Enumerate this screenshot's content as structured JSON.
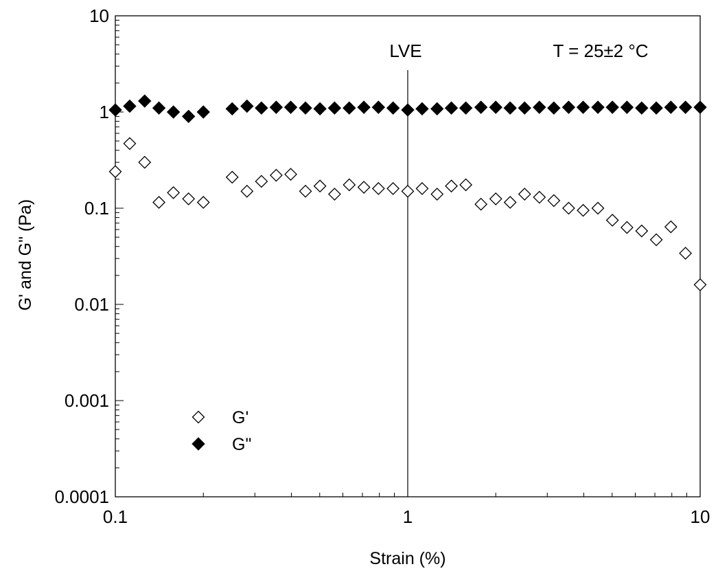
{
  "chart_data": {
    "type": "scatter",
    "xlabel": "Strain (%)",
    "ylabel": "G' and G\" (Pa)",
    "xscale": "log",
    "yscale": "log",
    "xlim": [
      0.1,
      10
    ],
    "ylim": [
      0.0001,
      10
    ],
    "x_tick_labels": [
      "0.1",
      "1",
      "10"
    ],
    "y_tick_labels": [
      "0.0001",
      "0.001",
      "0.01",
      "0.1",
      "1",
      "10"
    ],
    "grid": false,
    "legend_position": "lower-left",
    "annotations": {
      "lve_label": "LVE",
      "lve_strain": 1,
      "temperature_label": "T = 25±2 °C"
    },
    "series": [
      {
        "name": "G'",
        "marker": "open-diamond",
        "color": "#000000",
        "x": [
          0.1,
          0.112,
          0.126,
          0.141,
          0.158,
          0.178,
          0.2,
          0.251,
          0.282,
          0.316,
          0.355,
          0.398,
          0.447,
          0.501,
          0.562,
          0.631,
          0.708,
          0.794,
          0.891,
          1.0,
          1.12,
          1.26,
          1.41,
          1.58,
          1.78,
          2.0,
          2.24,
          2.51,
          2.82,
          3.16,
          3.55,
          3.98,
          4.47,
          5.01,
          5.62,
          6.31,
          7.08,
          7.94,
          8.91,
          10.0
        ],
        "y": [
          0.24,
          0.47,
          0.3,
          0.115,
          0.145,
          0.125,
          0.115,
          0.21,
          0.15,
          0.19,
          0.22,
          0.225,
          0.15,
          0.17,
          0.14,
          0.175,
          0.165,
          0.16,
          0.16,
          0.15,
          0.16,
          0.14,
          0.17,
          0.175,
          0.11,
          0.125,
          0.115,
          0.14,
          0.13,
          0.12,
          0.1,
          0.095,
          0.1,
          0.075,
          0.063,
          0.058,
          0.047,
          0.064,
          0.034,
          0.016
        ]
      },
      {
        "name": "G\"",
        "marker": "filled-diamond",
        "color": "#000000",
        "x": [
          0.1,
          0.112,
          0.126,
          0.141,
          0.158,
          0.178,
          0.2,
          0.251,
          0.282,
          0.316,
          0.355,
          0.398,
          0.447,
          0.501,
          0.562,
          0.631,
          0.708,
          0.794,
          0.891,
          1.0,
          1.12,
          1.26,
          1.41,
          1.58,
          1.78,
          2.0,
          2.24,
          2.51,
          2.82,
          3.16,
          3.55,
          3.98,
          4.47,
          5.01,
          5.62,
          6.31,
          7.08,
          7.94,
          8.91,
          10.0
        ],
        "y": [
          1.05,
          1.15,
          1.3,
          1.1,
          1.0,
          0.9,
          1.0,
          1.08,
          1.15,
          1.1,
          1.12,
          1.12,
          1.1,
          1.08,
          1.1,
          1.1,
          1.12,
          1.12,
          1.1,
          1.05,
          1.08,
          1.08,
          1.1,
          1.1,
          1.12,
          1.12,
          1.1,
          1.1,
          1.12,
          1.1,
          1.12,
          1.12,
          1.12,
          1.12,
          1.12,
          1.1,
          1.1,
          1.12,
          1.12,
          1.12
        ]
      }
    ]
  }
}
